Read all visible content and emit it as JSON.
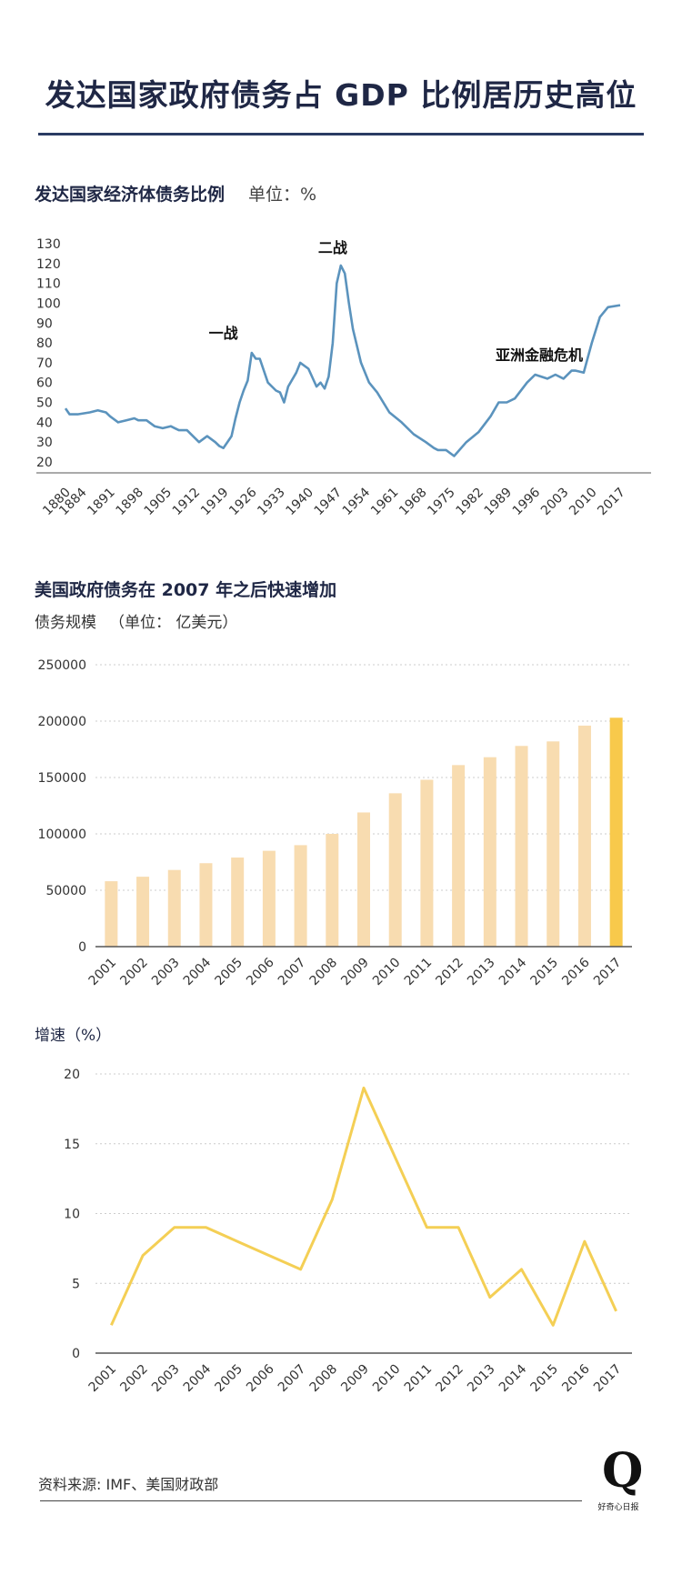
{
  "header": {
    "title": "发达国家政府债务占 GDP 比例居历史高位"
  },
  "colors": {
    "line1": "#5b93bd",
    "bar": "#f8dcb0",
    "bar_highlight": "#f8c94b",
    "line3": "#f4cf55",
    "rule": "#2a3b63"
  },
  "section1": {
    "title": "发达国家经济体债务比例",
    "unit": "单位：%"
  },
  "section2": {
    "title": "美国政府债务在 2007 年之后快速增加",
    "subtitle": "债务规模",
    "unit": "（单位：  亿美元）"
  },
  "section3": {
    "title": "增速（%）"
  },
  "footer": {
    "source": "资料来源: IMF、美国财政部",
    "logo_letter": "Q",
    "logo_text": "好奇心日报"
  },
  "chart_data": [
    {
      "type": "line",
      "ylim": [
        20,
        130
      ],
      "yticks": [
        20,
        30,
        40,
        50,
        60,
        70,
        80,
        90,
        100,
        110,
        120,
        130
      ],
      "xlim": [
        1880,
        2017
      ],
      "xticks": [
        1880,
        1884,
        1891,
        1898,
        1905,
        1912,
        1919,
        1926,
        1933,
        1940,
        1947,
        1954,
        1961,
        1968,
        1975,
        1982,
        1989,
        1996,
        2003,
        2010,
        2017
      ],
      "annotations": [
        {
          "text": "一战",
          "x": 1919,
          "y": 76
        },
        {
          "text": "二战",
          "x": 1946,
          "y": 119
        },
        {
          "text": "亚洲金融危机",
          "x": 1997,
          "y": 65
        }
      ],
      "series": [
        {
          "x": [
            1880,
            1881,
            1883,
            1886,
            1888,
            1890,
            1891,
            1893,
            1895,
            1897,
            1898,
            1900,
            1902,
            1904,
            1906,
            1907,
            1908,
            1910,
            1913,
            1915,
            1917,
            1918,
            1919,
            1920,
            1921,
            1922,
            1923,
            1924,
            1925,
            1926,
            1927,
            1928,
            1930,
            1932,
            1933,
            1934,
            1935,
            1937,
            1938,
            1940,
            1942,
            1943,
            1944,
            1945,
            1946,
            1947,
            1948,
            1949,
            1950,
            1951,
            1953,
            1955,
            1957,
            1960,
            1963,
            1966,
            1969,
            1971,
            1972,
            1974,
            1976,
            1979,
            1982,
            1985,
            1987,
            1989,
            1991,
            1994,
            1996,
            1999,
            2001,
            2003,
            2005,
            2006,
            2008,
            2010,
            2012,
            2014,
            2017
          ],
          "y": [
            47,
            44,
            44,
            45,
            46,
            45,
            43,
            40,
            41,
            42,
            41,
            41,
            38,
            37,
            38,
            37,
            36,
            36,
            30,
            33,
            30,
            28,
            27,
            30,
            33,
            42,
            50,
            56,
            61,
            75,
            72,
            72,
            60,
            56,
            55,
            50,
            58,
            65,
            70,
            67,
            58,
            60,
            57,
            63,
            80,
            110,
            119,
            115,
            100,
            87,
            70,
            60,
            55,
            45,
            40,
            34,
            30,
            27,
            26,
            26,
            23,
            30,
            35,
            43,
            50,
            50,
            52,
            60,
            64,
            62,
            64,
            62,
            66,
            66,
            65,
            80,
            93,
            98,
            99
          ]
        }
      ]
    },
    {
      "type": "bar",
      "ylim": [
        0,
        250000
      ],
      "yticks": [
        0,
        50000,
        100000,
        150000,
        200000,
        250000
      ],
      "categories": [
        "2001",
        "2002",
        "2003",
        "2004",
        "2005",
        "2006",
        "2007",
        "2008",
        "2009",
        "2010",
        "2011",
        "2012",
        "2013",
        "2014",
        "2015",
        "2016",
        "2017"
      ],
      "values": [
        58000,
        62000,
        68000,
        74000,
        79000,
        85000,
        90000,
        100000,
        119000,
        136000,
        148000,
        161000,
        168000,
        178000,
        182000,
        196000,
        203000
      ],
      "highlight": "2017"
    },
    {
      "type": "line",
      "ylim": [
        0,
        20
      ],
      "yticks": [
        0,
        5,
        10,
        15,
        20
      ],
      "categories": [
        "2001",
        "2002",
        "2003",
        "2004",
        "2005",
        "2006",
        "2007",
        "2008",
        "2009",
        "2010",
        "2011",
        "2012",
        "2013",
        "2014",
        "2015",
        "2016",
        "2017"
      ],
      "values": [
        2,
        7,
        9,
        9,
        8,
        7,
        6,
        11,
        19,
        14,
        9,
        9,
        4,
        6,
        2,
        8,
        3
      ]
    }
  ]
}
